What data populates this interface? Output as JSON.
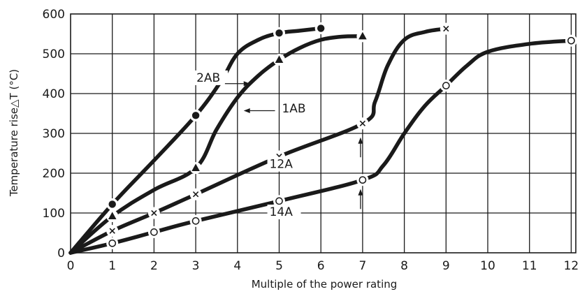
{
  "chart_data": {
    "type": "line",
    "xlabel": "Multiple of the power rating",
    "ylabel": "Temperature rise△T (°C)",
    "xlim": [
      0,
      12.5
    ],
    "ylim": [
      0,
      600
    ],
    "xticks": [
      0,
      1,
      2,
      3,
      4,
      5,
      6,
      7,
      8,
      9,
      10,
      11,
      12
    ],
    "yticks": [
      0,
      100,
      200,
      300,
      400,
      500,
      600
    ],
    "grid": true,
    "legend": "inline labels with leader arrows",
    "series": [
      {
        "name": "2AB",
        "marker": "filled-circle",
        "x": [
          0,
          1,
          3,
          5,
          6
        ],
        "y": [
          0,
          122,
          345,
          552,
          564
        ],
        "curve": [
          [
            0,
            0
          ],
          [
            1,
            122
          ],
          [
            2,
            232
          ],
          [
            3,
            345
          ],
          [
            3.6,
            430
          ],
          [
            4,
            500
          ],
          [
            4.5,
            535
          ],
          [
            5,
            552
          ],
          [
            5.5,
            558
          ],
          [
            6,
            564
          ]
        ]
      },
      {
        "name": "1AB",
        "marker": "filled-triangle",
        "x": [
          0,
          1,
          3,
          5,
          7
        ],
        "y": [
          0,
          92,
          213,
          485,
          544
        ],
        "curve": [
          [
            0,
            0
          ],
          [
            1,
            92
          ],
          [
            2,
            158
          ],
          [
            3,
            213
          ],
          [
            3.5,
            310
          ],
          [
            4,
            390
          ],
          [
            4.5,
            445
          ],
          [
            5,
            485
          ],
          [
            5.5,
            515
          ],
          [
            6,
            535
          ],
          [
            6.5,
            543
          ],
          [
            7,
            544
          ]
        ]
      },
      {
        "name": "12A",
        "marker": "cross",
        "x": [
          0,
          1,
          2,
          3,
          5,
          7,
          9
        ],
        "y": [
          0,
          55,
          100,
          147,
          242,
          325,
          563
        ],
        "curve": [
          [
            0,
            0
          ],
          [
            1,
            55
          ],
          [
            2,
            100
          ],
          [
            3,
            147
          ],
          [
            5,
            242
          ],
          [
            7,
            325
          ],
          [
            7.3,
            380
          ],
          [
            7.6,
            470
          ],
          [
            8,
            535
          ],
          [
            8.5,
            555
          ],
          [
            9,
            563
          ]
        ]
      },
      {
        "name": "14A",
        "marker": "open-circle",
        "x": [
          0,
          1,
          2,
          3,
          5,
          7,
          9,
          12
        ],
        "y": [
          0,
          24,
          52,
          80,
          130,
          183,
          420,
          533
        ],
        "curve": [
          [
            0,
            0
          ],
          [
            1,
            24
          ],
          [
            2,
            52
          ],
          [
            3,
            80
          ],
          [
            5,
            130
          ],
          [
            7,
            183
          ],
          [
            7.5,
            220
          ],
          [
            8,
            300
          ],
          [
            8.5,
            370
          ],
          [
            9,
            420
          ],
          [
            9.5,
            470
          ],
          [
            10,
            505
          ],
          [
            11,
            525
          ],
          [
            12,
            533
          ]
        ]
      }
    ],
    "annotations": [
      {
        "text": "2AB",
        "series": "2AB"
      },
      {
        "text": "1AB",
        "series": "1AB"
      },
      {
        "text": "12A",
        "series": "12A"
      },
      {
        "text": "14A",
        "series": "14A"
      }
    ]
  }
}
